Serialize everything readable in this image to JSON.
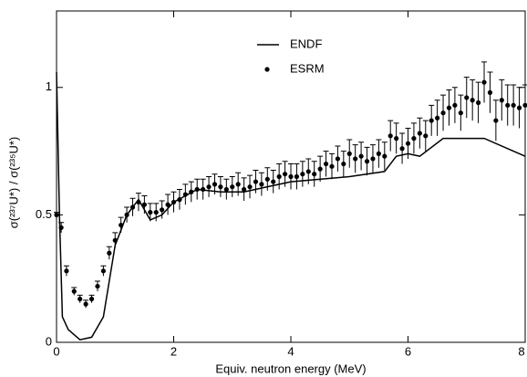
{
  "chart_data": {
    "type": "line",
    "xlabel": "Equiv. neutron energy (MeV)",
    "ylabel": "σ(²³⁷U*) / σ(²³⁵U*)",
    "xlim": [
      0,
      8
    ],
    "xticks": [
      0,
      2,
      4,
      6,
      8
    ],
    "ylim": [
      0,
      1.3
    ],
    "yticks": [
      0,
      0.5,
      1
    ],
    "series": [
      {
        "name": "ENDF",
        "mode": "line",
        "color": "#000000",
        "x": [
          0,
          0.05,
          0.1,
          0.2,
          0.4,
          0.6,
          0.8,
          1.0,
          1.2,
          1.4,
          1.6,
          1.8,
          2.0,
          2.4,
          2.8,
          3.2,
          3.6,
          4.0,
          5.0,
          5.6,
          5.8,
          6.0,
          6.2,
          6.6,
          7.0,
          7.3,
          8.0
        ],
        "values": [
          1.06,
          0.5,
          0.1,
          0.05,
          0.01,
          0.02,
          0.1,
          0.38,
          0.5,
          0.56,
          0.48,
          0.5,
          0.55,
          0.6,
          0.59,
          0.59,
          0.61,
          0.63,
          0.65,
          0.67,
          0.73,
          0.74,
          0.73,
          0.8,
          0.8,
          0.8,
          0.73
        ]
      },
      {
        "name": "ESRM",
        "mode": "points",
        "color": "#000000",
        "x": [
          0,
          0.08,
          0.17,
          0.3,
          0.4,
          0.5,
          0.6,
          0.7,
          0.8,
          0.9,
          1.0,
          1.1,
          1.2,
          1.3,
          1.4,
          1.5,
          1.6,
          1.7,
          1.8,
          1.9,
          2.0,
          2.1,
          2.2,
          2.3,
          2.4,
          2.5,
          2.6,
          2.7,
          2.8,
          2.9,
          3.0,
          3.1,
          3.2,
          3.3,
          3.4,
          3.5,
          3.6,
          3.7,
          3.8,
          3.9,
          4.0,
          4.1,
          4.2,
          4.3,
          4.4,
          4.5,
          4.6,
          4.7,
          4.8,
          4.9,
          5.0,
          5.1,
          5.2,
          5.3,
          5.4,
          5.5,
          5.6,
          5.7,
          5.8,
          5.9,
          6.0,
          6.1,
          6.2,
          6.3,
          6.4,
          6.5,
          6.6,
          6.7,
          6.8,
          6.9,
          7.0,
          7.1,
          7.2,
          7.3,
          7.4,
          7.5,
          7.6,
          7.7,
          7.8,
          7.9,
          8.0
        ],
        "values": [
          0.5,
          0.45,
          0.28,
          0.2,
          0.17,
          0.15,
          0.17,
          0.22,
          0.28,
          0.35,
          0.4,
          0.46,
          0.5,
          0.53,
          0.55,
          0.54,
          0.51,
          0.51,
          0.52,
          0.54,
          0.55,
          0.56,
          0.58,
          0.59,
          0.6,
          0.6,
          0.61,
          0.62,
          0.61,
          0.6,
          0.61,
          0.62,
          0.6,
          0.61,
          0.63,
          0.62,
          0.64,
          0.63,
          0.65,
          0.66,
          0.65,
          0.65,
          0.66,
          0.67,
          0.66,
          0.68,
          0.7,
          0.69,
          0.72,
          0.7,
          0.74,
          0.72,
          0.73,
          0.71,
          0.72,
          0.74,
          0.73,
          0.81,
          0.8,
          0.76,
          0.78,
          0.8,
          0.82,
          0.81,
          0.87,
          0.88,
          0.9,
          0.92,
          0.93,
          0.9,
          0.96,
          0.95,
          0.94,
          1.02,
          0.98,
          0.87,
          0.95,
          0.93,
          0.93,
          0.92,
          0.93
        ],
        "errors": [
          0.01,
          0.02,
          0.02,
          0.015,
          0.015,
          0.015,
          0.015,
          0.02,
          0.02,
          0.025,
          0.03,
          0.03,
          0.03,
          0.035,
          0.035,
          0.035,
          0.035,
          0.035,
          0.035,
          0.04,
          0.04,
          0.04,
          0.04,
          0.04,
          0.04,
          0.04,
          0.04,
          0.04,
          0.04,
          0.04,
          0.04,
          0.045,
          0.045,
          0.045,
          0.045,
          0.045,
          0.045,
          0.045,
          0.05,
          0.05,
          0.05,
          0.05,
          0.05,
          0.05,
          0.05,
          0.05,
          0.05,
          0.05,
          0.05,
          0.05,
          0.055,
          0.055,
          0.055,
          0.055,
          0.055,
          0.055,
          0.055,
          0.06,
          0.06,
          0.06,
          0.06,
          0.06,
          0.06,
          0.06,
          0.06,
          0.07,
          0.07,
          0.07,
          0.07,
          0.07,
          0.08,
          0.08,
          0.08,
          0.08,
          0.08,
          0.08,
          0.08,
          0.08,
          0.08,
          0.08,
          0.08
        ]
      }
    ]
  }
}
